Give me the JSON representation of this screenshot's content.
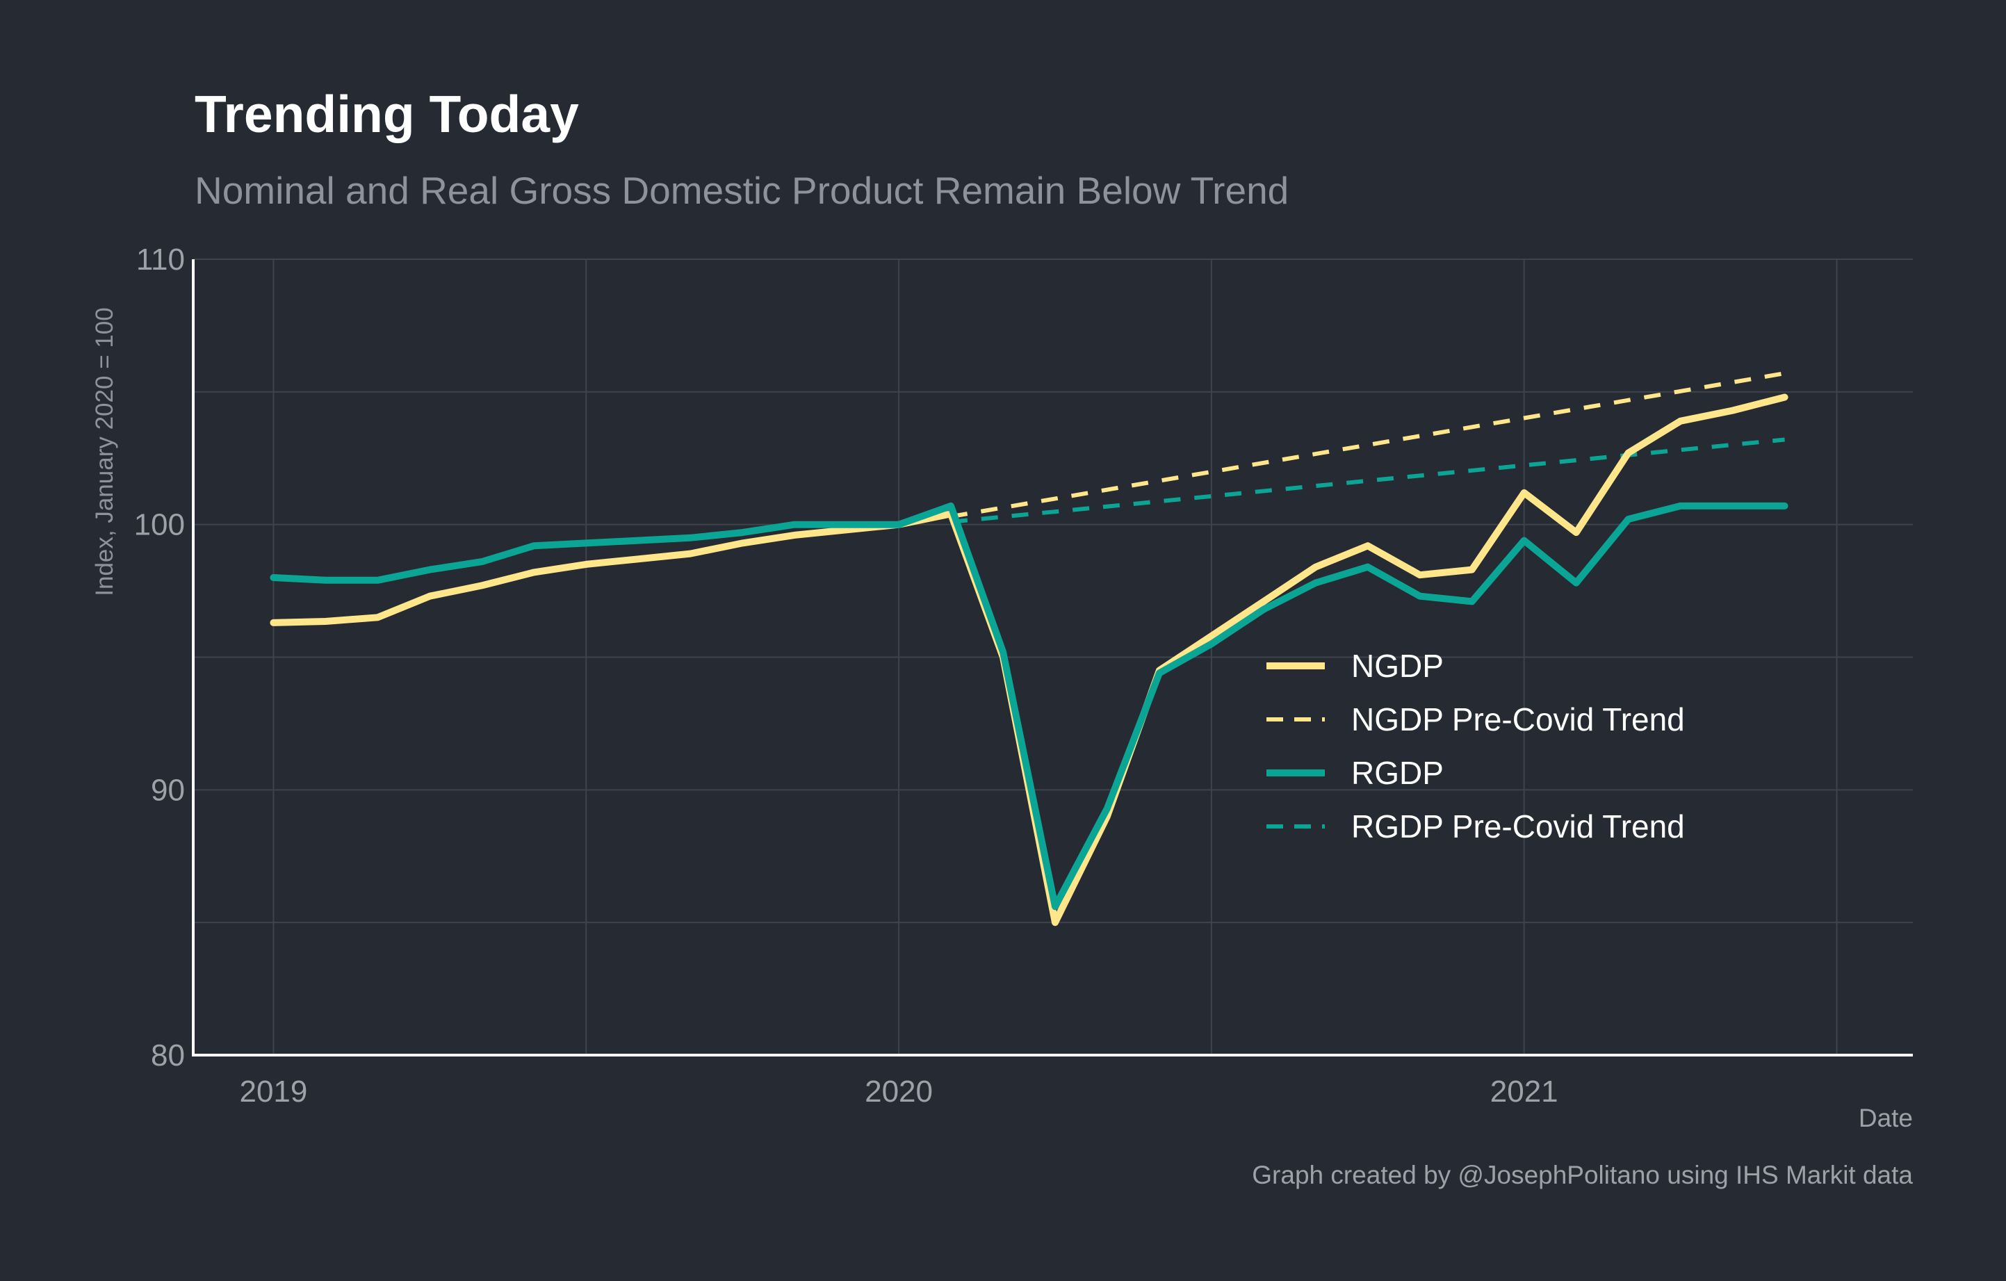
{
  "chart_data": {
    "type": "line",
    "title": "Trending Today",
    "subtitle": "Nominal and Real Gross Domestic Product Remain Below Trend",
    "xlabel": "Date",
    "ylabel": "Index, January 2020 = 100",
    "caption": "Graph created by @JosephPolitano using IHS Markit data",
    "xlim": [
      "2018-11-15",
      "2021-08-15"
    ],
    "ylim": [
      80,
      110
    ],
    "x_ticks": [
      "2019",
      "2020",
      "2021"
    ],
    "y_ticks": [
      "80",
      "90",
      "100",
      "110"
    ],
    "grid": true,
    "legend_position": "right",
    "colors": {
      "background": "#252a33",
      "grid": "#3e434c",
      "axis": "#ffffff",
      "ngdp": "#ffe68a",
      "rgdp": "#0ba596"
    },
    "series": [
      {
        "name": "NGDP",
        "style": "solid",
        "color": "#ffe68a",
        "x": [
          "2019-01",
          "2019-02",
          "2019-03",
          "2019-04",
          "2019-05",
          "2019-06",
          "2019-07",
          "2019-08",
          "2019-09",
          "2019-10",
          "2019-11",
          "2019-12",
          "2020-01",
          "2020-02",
          "2020-03",
          "2020-04",
          "2020-05",
          "2020-06",
          "2020-07",
          "2020-08",
          "2020-09",
          "2020-10",
          "2020-11",
          "2020-12",
          "2021-01",
          "2021-02",
          "2021-03",
          "2021-04",
          "2021-05",
          "2021-06"
        ],
        "values": [
          96.3,
          96.35,
          96.5,
          97.3,
          97.7,
          98.2,
          98.5,
          98.7,
          98.9,
          99.3,
          99.6,
          99.8,
          100.0,
          100.4,
          95.0,
          85.0,
          89.0,
          94.5,
          95.8,
          97.1,
          98.4,
          99.2,
          98.1,
          98.3,
          101.2,
          99.7,
          102.7,
          103.9,
          104.3,
          104.8
        ]
      },
      {
        "name": "NGDP Pre-Covid Trend",
        "style": "dashed",
        "color": "#ffe68a",
        "x": [
          "2020-02",
          "2021-06"
        ],
        "values": [
          100.3,
          105.7
        ]
      },
      {
        "name": "RGDP",
        "style": "solid",
        "color": "#0ba596",
        "x": [
          "2019-01",
          "2019-02",
          "2019-03",
          "2019-04",
          "2019-05",
          "2019-06",
          "2019-07",
          "2019-08",
          "2019-09",
          "2019-10",
          "2019-11",
          "2019-12",
          "2020-01",
          "2020-02",
          "2020-03",
          "2020-04",
          "2020-05",
          "2020-06",
          "2020-07",
          "2020-08",
          "2020-09",
          "2020-10",
          "2020-11",
          "2020-12",
          "2021-01",
          "2021-02",
          "2021-03",
          "2021-04",
          "2021-05",
          "2021-06"
        ],
        "values": [
          98.0,
          97.9,
          97.9,
          98.3,
          98.6,
          99.2,
          99.3,
          99.4,
          99.5,
          99.7,
          100.0,
          100.0,
          100.0,
          100.7,
          95.2,
          85.6,
          89.3,
          94.4,
          95.5,
          96.8,
          97.8,
          98.4,
          97.3,
          97.1,
          99.4,
          97.8,
          100.2,
          100.7,
          100.7,
          100.7
        ]
      },
      {
        "name": "RGDP Pre-Covid Trend",
        "style": "dashed",
        "color": "#0ba596",
        "x": [
          "2020-02",
          "2021-06"
        ],
        "values": [
          100.1,
          103.2
        ]
      }
    ]
  }
}
